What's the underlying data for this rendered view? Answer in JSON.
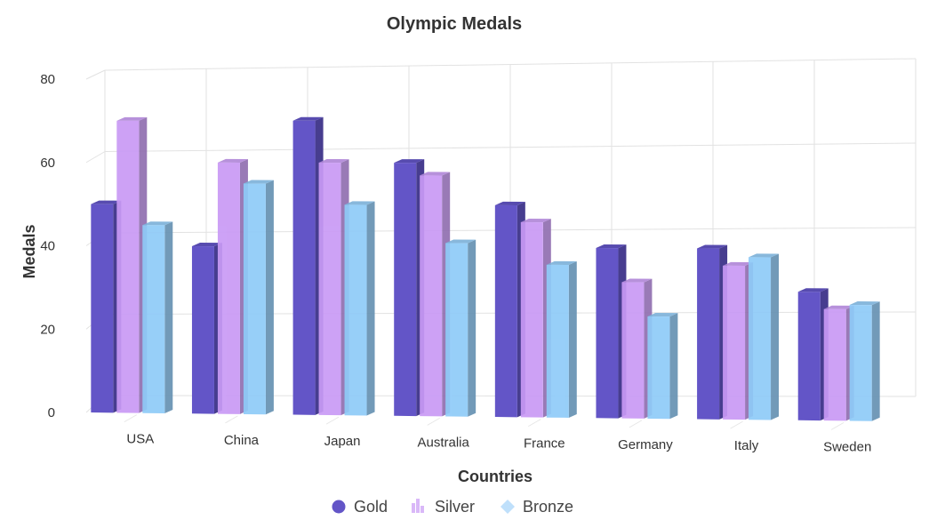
{
  "chart_data": {
    "type": "bar",
    "title": "Olympic Medals",
    "xlabel": "Countries",
    "ylabel": "Medals",
    "categories": [
      "USA",
      "China",
      "Japan",
      "Australia",
      "France",
      "Germany",
      "Italy",
      "Sweden"
    ],
    "yticks": [
      "0",
      "20",
      "40",
      "60",
      "80"
    ],
    "ylim": [
      0,
      80
    ],
    "grid": true,
    "legend_position": "bottom",
    "series": [
      {
        "name": "Gold",
        "color": "#6355C7",
        "marker": "circle",
        "values": [
          50,
          40,
          70,
          60,
          50,
          40,
          40,
          30
        ]
      },
      {
        "name": "Silver",
        "color": "#C99AF5",
        "marker": "bars",
        "values": [
          70,
          60,
          60,
          57,
          46,
          32,
          36,
          26
        ]
      },
      {
        "name": "Bronze",
        "color": "#8FCBF8",
        "marker": "diamond",
        "values": [
          45,
          55,
          50,
          41,
          36,
          24,
          38,
          27
        ]
      }
    ]
  }
}
